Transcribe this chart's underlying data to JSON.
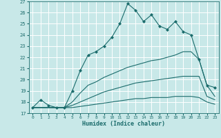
{
  "bg_color": "#c8e8e8",
  "grid_color": "#ffffff",
  "line_color": "#1a6b6b",
  "xlabel": "Humidex (Indice chaleur)",
  "xlim": [
    -0.5,
    23.5
  ],
  "ylim": [
    17,
    27
  ],
  "yticks": [
    17,
    18,
    19,
    20,
    21,
    22,
    23,
    24,
    25,
    26,
    27
  ],
  "xticks": [
    0,
    1,
    2,
    3,
    4,
    5,
    6,
    7,
    8,
    9,
    10,
    11,
    12,
    13,
    14,
    15,
    16,
    17,
    18,
    19,
    20,
    21,
    22,
    23
  ],
  "main_line_x": [
    0,
    1,
    2,
    3,
    4,
    5,
    6,
    7,
    8,
    9,
    10,
    11,
    12,
    13,
    14,
    15,
    16,
    17,
    18,
    19,
    20,
    21,
    22,
    23
  ],
  "main_line_y": [
    17.5,
    18.2,
    17.7,
    17.5,
    17.5,
    19.0,
    20.8,
    22.2,
    22.5,
    23.0,
    23.8,
    25.0,
    26.8,
    26.2,
    25.2,
    25.8,
    24.8,
    24.5,
    25.2,
    24.3,
    24.0,
    21.8,
    19.5,
    19.3
  ],
  "line2_x": [
    0,
    3,
    4,
    5,
    6,
    7,
    8,
    9,
    10,
    11,
    12,
    13,
    14,
    15,
    16,
    17,
    18,
    19,
    20,
    21,
    22,
    23
  ],
  "line2_y": [
    17.5,
    17.5,
    17.5,
    18.0,
    18.8,
    19.5,
    19.8,
    20.2,
    20.5,
    20.8,
    21.1,
    21.3,
    21.5,
    21.7,
    21.8,
    22.0,
    22.2,
    22.5,
    22.5,
    21.8,
    19.5,
    18.5
  ],
  "line3_x": [
    0,
    3,
    4,
    5,
    6,
    7,
    8,
    9,
    10,
    11,
    12,
    13,
    14,
    15,
    16,
    17,
    18,
    19,
    20,
    21,
    22,
    23
  ],
  "line3_y": [
    17.5,
    17.5,
    17.5,
    17.7,
    18.0,
    18.3,
    18.6,
    18.9,
    19.1,
    19.3,
    19.5,
    19.7,
    19.8,
    19.9,
    20.0,
    20.1,
    20.2,
    20.3,
    20.3,
    20.3,
    18.5,
    18.2
  ],
  "line4_x": [
    0,
    3,
    4,
    5,
    6,
    7,
    8,
    9,
    10,
    11,
    12,
    13,
    14,
    15,
    16,
    17,
    18,
    19,
    20,
    21,
    22,
    23
  ],
  "line4_y": [
    17.5,
    17.5,
    17.5,
    17.5,
    17.6,
    17.7,
    17.8,
    17.9,
    18.0,
    18.1,
    18.2,
    18.3,
    18.3,
    18.4,
    18.4,
    18.4,
    18.5,
    18.5,
    18.5,
    18.4,
    18.0,
    17.8
  ]
}
